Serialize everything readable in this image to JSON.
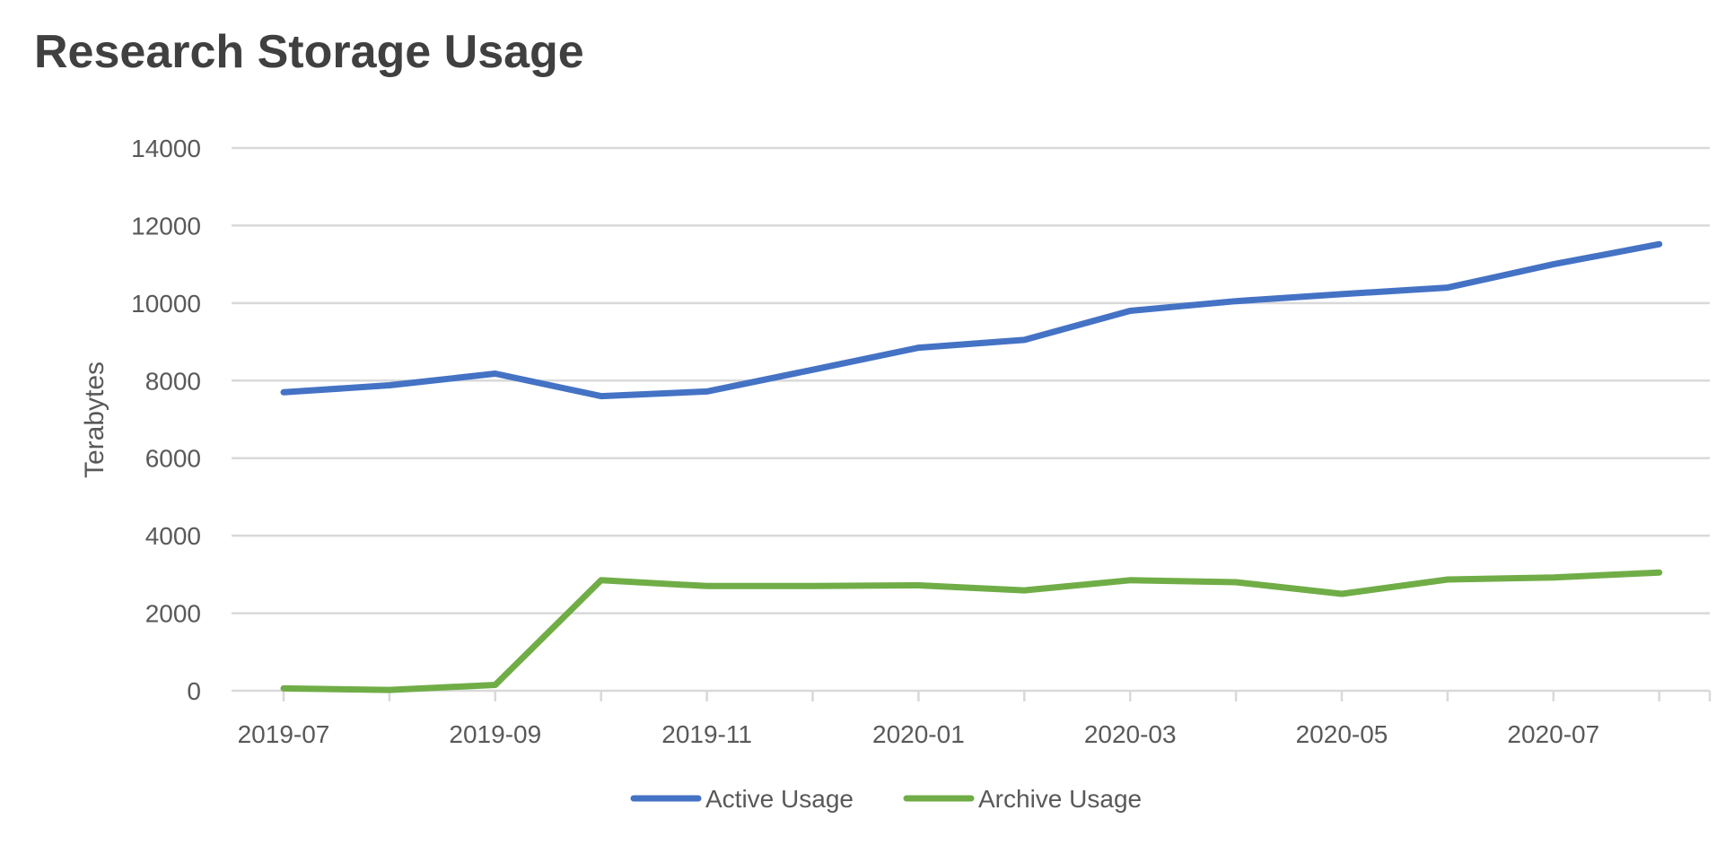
{
  "chart_data": {
    "type": "line",
    "title": "Research Storage Usage",
    "xlabel": "",
    "ylabel": "Terabytes",
    "ylim": [
      0,
      14000
    ],
    "y_ticks": [
      0,
      2000,
      4000,
      6000,
      8000,
      10000,
      12000,
      14000
    ],
    "x": [
      "2019-07",
      "2019-08",
      "2019-09",
      "2019-10",
      "2019-11",
      "2019-12",
      "2020-01",
      "2020-02",
      "2020-03",
      "2020-04",
      "2020-05",
      "2020-06",
      "2020-07",
      "2020-08"
    ],
    "x_tick_labels": [
      "2019-07",
      "2019-09",
      "2019-11",
      "2020-01",
      "2020-03",
      "2020-05",
      "2020-07"
    ],
    "grid": true,
    "legend": "bottom",
    "series": [
      {
        "name": "Active Usage",
        "color": "#4472C4",
        "values": [
          7700,
          7880,
          8180,
          7600,
          7720,
          8280,
          8850,
          9050,
          9800,
          10050,
          10230,
          10400,
          11000,
          11520
        ]
      },
      {
        "name": "Archive Usage",
        "color": "#70AD47",
        "values": [
          60,
          20,
          150,
          2850,
          2700,
          2700,
          2720,
          2590,
          2850,
          2800,
          2500,
          2870,
          2920,
          3050
        ]
      }
    ]
  }
}
